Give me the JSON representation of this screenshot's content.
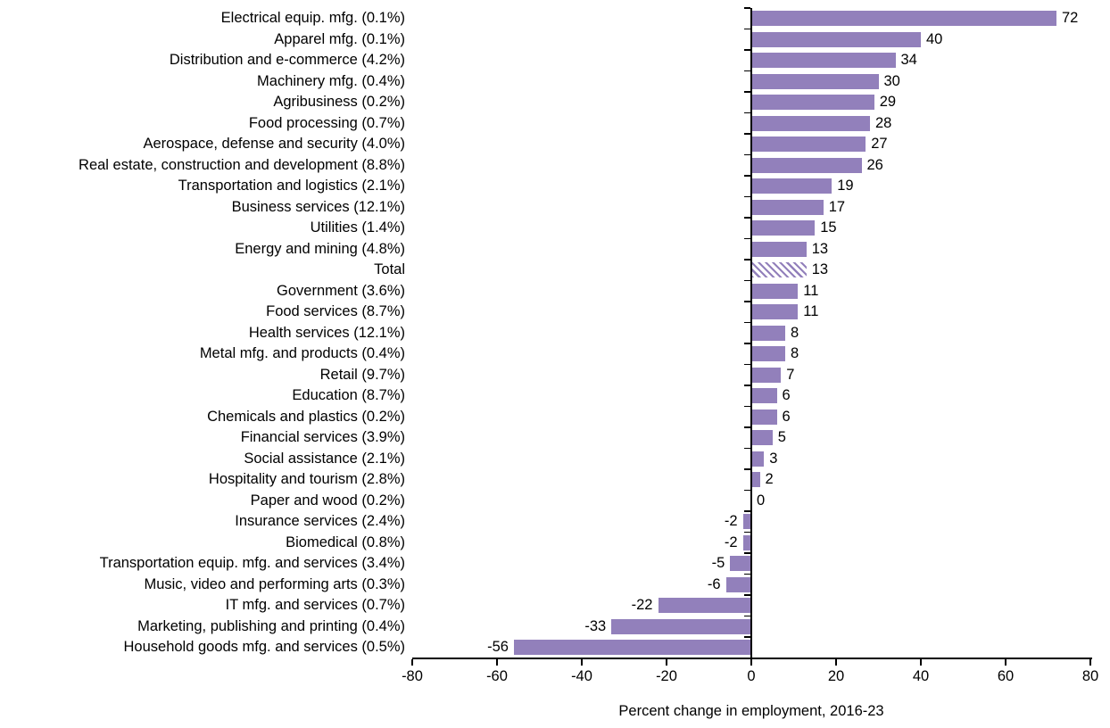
{
  "chart_data": {
    "type": "bar",
    "orientation": "horizontal",
    "title": "",
    "xlabel": "Percent change in employment, 2016-23",
    "ylabel": "",
    "xlim": [
      -80,
      80
    ],
    "xticks": [
      -80,
      -60,
      -40,
      -20,
      0,
      20,
      40,
      60,
      80
    ],
    "grid": "off",
    "legend": "none",
    "bar_color": "#9280bb",
    "axis_color": "#000000",
    "hatched_category": "Total",
    "hatch_style": "diagonal-stripes",
    "categories": [
      "Electrical equip. mfg. (0.1%)",
      "Apparel mfg. (0.1%)",
      "Distribution and e-commerce (4.2%)",
      "Machinery mfg. (0.4%)",
      "Agribusiness (0.2%)",
      "Food processing (0.7%)",
      "Aerospace, defense and security (4.0%)",
      "Real estate, construction and development (8.8%)",
      "Transportation and logistics (2.1%)",
      "Business services (12.1%)",
      "Utilities (1.4%)",
      "Energy and mining (4.8%)",
      "Total",
      "Government (3.6%)",
      "Food services (8.7%)",
      "Health services (12.1%)",
      "Metal mfg. and products (0.4%)",
      "Retail (9.7%)",
      "Education (8.7%)",
      "Chemicals and plastics (0.2%)",
      "Financial services (3.9%)",
      "Social assistance (2.1%)",
      "Hospitality and tourism (2.8%)",
      "Paper and wood (0.2%)",
      "Insurance services (2.4%)",
      "Biomedical (0.8%)",
      "Transportation equip. mfg. and services (3.4%)",
      "Music, video and performing arts (0.3%)",
      "IT mfg. and services (0.7%)",
      "Marketing, publishing and printing (0.4%)",
      "Household goods mfg. and services (0.5%)"
    ],
    "values": [
      72,
      40,
      34,
      30,
      29,
      28,
      27,
      26,
      19,
      17,
      15,
      13,
      13,
      11,
      11,
      8,
      8,
      7,
      6,
      6,
      5,
      3,
      2,
      0,
      -2,
      -2,
      -5,
      -6,
      -22,
      -33,
      -56
    ]
  }
}
